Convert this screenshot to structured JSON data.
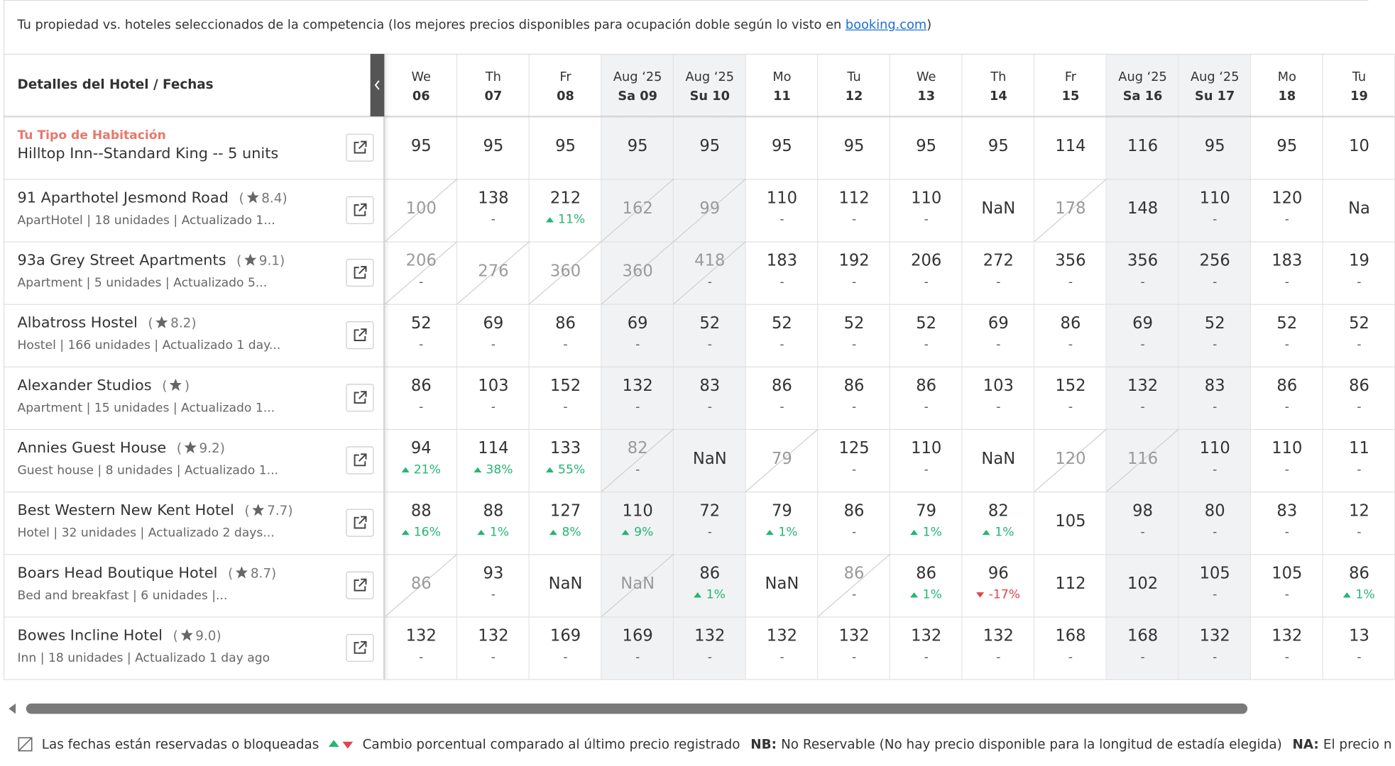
{
  "header": {
    "intro": "Tu propiedad vs. hoteles seleccionados de la competencia (los mejores precios disponibles para ocupación doble según lo visto en ",
    "link": "booking.com",
    "suffix": ")"
  },
  "table": {
    "corner": "Detalles del Hotel / Fechas",
    "columns": [
      {
        "top": "We",
        "bottom": "06"
      },
      {
        "top": "Th",
        "bottom": "07"
      },
      {
        "top": "Fr",
        "bottom": "08"
      },
      {
        "top": "Aug ‘25",
        "bottom": "Sa 09",
        "weekend": true
      },
      {
        "top": "Aug ‘25",
        "bottom": "Su 10",
        "weekend": true
      },
      {
        "top": "Mo",
        "bottom": "11"
      },
      {
        "top": "Tu",
        "bottom": "12"
      },
      {
        "top": "We",
        "bottom": "13"
      },
      {
        "top": "Th",
        "bottom": "14"
      },
      {
        "top": "Fr",
        "bottom": "15"
      },
      {
        "top": "Aug ‘25",
        "bottom": "Sa 16",
        "weekend": true
      },
      {
        "top": "Aug ‘25",
        "bottom": "Su 17",
        "weekend": true
      },
      {
        "top": "Mo",
        "bottom": "18"
      },
      {
        "top": "Tu",
        "bottom": "19"
      }
    ],
    "property": {
      "label": "Tu Tipo de Habitación",
      "name": "Hilltop Inn--Standard King -- 5 units",
      "prices": [
        "95",
        "95",
        "95",
        "95",
        "95",
        "95",
        "95",
        "95",
        "95",
        "114",
        "116",
        "95",
        "95",
        "10"
      ]
    },
    "rows": [
      {
        "name": "91 Aparthotel Jesmond Road",
        "rating": "8.4",
        "meta": "ApartHotel | 18 unidades | Actualizado 1...",
        "cells": [
          {
            "price": "100",
            "blocked": true
          },
          {
            "price": "138",
            "change": "-"
          },
          {
            "price": "212",
            "change": "11%",
            "trend": "up"
          },
          {
            "price": "162",
            "blocked": true
          },
          {
            "price": "99",
            "blocked": true
          },
          {
            "price": "110",
            "change": "-"
          },
          {
            "price": "112",
            "change": "-"
          },
          {
            "price": "110",
            "change": "-"
          },
          {
            "price": "NaN"
          },
          {
            "price": "178",
            "blocked": true
          },
          {
            "price": "148"
          },
          {
            "price": "110",
            "change": "-"
          },
          {
            "price": "120",
            "change": "-"
          },
          {
            "price": "Na"
          }
        ]
      },
      {
        "name": "93a Grey Street Apartments",
        "rating": "9.1",
        "meta": "Apartment | 5 unidades | Actualizado 5...",
        "cells": [
          {
            "price": "206",
            "change": "-",
            "blocked": true
          },
          {
            "price": "276",
            "blocked": true
          },
          {
            "price": "360",
            "blocked": true
          },
          {
            "price": "360",
            "blocked": true
          },
          {
            "price": "418",
            "change": "-",
            "blocked": true
          },
          {
            "price": "183",
            "change": "-"
          },
          {
            "price": "192",
            "change": "-"
          },
          {
            "price": "206",
            "change": "-"
          },
          {
            "price": "272",
            "change": "-"
          },
          {
            "price": "356",
            "change": "-"
          },
          {
            "price": "356",
            "change": "-"
          },
          {
            "price": "256",
            "change": "-"
          },
          {
            "price": "183",
            "change": "-"
          },
          {
            "price": "19",
            "change": "-"
          }
        ]
      },
      {
        "name": "Albatross Hostel",
        "rating": "8.2",
        "meta": "Hostel | 166 unidades | Actualizado 1 day...",
        "cells": [
          {
            "price": "52",
            "change": "-"
          },
          {
            "price": "69",
            "change": "-"
          },
          {
            "price": "86",
            "change": "-"
          },
          {
            "price": "69",
            "change": "-"
          },
          {
            "price": "52",
            "change": "-"
          },
          {
            "price": "52",
            "change": "-"
          },
          {
            "price": "52",
            "change": "-"
          },
          {
            "price": "52",
            "change": "-"
          },
          {
            "price": "69",
            "change": "-"
          },
          {
            "price": "86",
            "change": "-"
          },
          {
            "price": "69",
            "change": "-"
          },
          {
            "price": "52",
            "change": "-"
          },
          {
            "price": "52",
            "change": "-"
          },
          {
            "price": "52",
            "change": "-"
          }
        ]
      },
      {
        "name": "Alexander Studios",
        "meta": "Apartment | 15 unidades | Actualizado 1...",
        "cells": [
          {
            "price": "86",
            "change": "-"
          },
          {
            "price": "103",
            "change": "-"
          },
          {
            "price": "152",
            "change": "-"
          },
          {
            "price": "132",
            "change": "-"
          },
          {
            "price": "83",
            "change": "-"
          },
          {
            "price": "86",
            "change": "-"
          },
          {
            "price": "86",
            "change": "-"
          },
          {
            "price": "86",
            "change": "-"
          },
          {
            "price": "103",
            "change": "-"
          },
          {
            "price": "152",
            "change": "-"
          },
          {
            "price": "132",
            "change": "-"
          },
          {
            "price": "83",
            "change": "-"
          },
          {
            "price": "86",
            "change": "-"
          },
          {
            "price": "86",
            "change": "-"
          }
        ]
      },
      {
        "name": "Annies Guest House",
        "rating": "9.2",
        "meta": "Guest house | 8 unidades | Actualizado 1...",
        "cells": [
          {
            "price": "94",
            "change": "21%",
            "trend": "up"
          },
          {
            "price": "114",
            "change": "38%",
            "trend": "up"
          },
          {
            "price": "133",
            "change": "55%",
            "trend": "up"
          },
          {
            "price": "82",
            "change": "-",
            "blocked": true
          },
          {
            "price": "NaN"
          },
          {
            "price": "79",
            "blocked": true
          },
          {
            "price": "125",
            "change": "-"
          },
          {
            "price": "110",
            "change": "-"
          },
          {
            "price": "NaN"
          },
          {
            "price": "120",
            "blocked": true
          },
          {
            "price": "116",
            "blocked": true
          },
          {
            "price": "110",
            "change": "-"
          },
          {
            "price": "110",
            "change": "-"
          },
          {
            "price": "11",
            "change": "-"
          }
        ]
      },
      {
        "name": "Best Western New Kent Hotel",
        "rating": "7.7",
        "meta": "Hotel | 32 unidades | Actualizado 2 days...",
        "cells": [
          {
            "price": "88",
            "change": "16%",
            "trend": "up"
          },
          {
            "price": "88",
            "change": "1%",
            "trend": "up"
          },
          {
            "price": "127",
            "change": "8%",
            "trend": "up"
          },
          {
            "price": "110",
            "change": "9%",
            "trend": "up"
          },
          {
            "price": "72",
            "change": "-"
          },
          {
            "price": "79",
            "change": "1%",
            "trend": "up"
          },
          {
            "price": "86",
            "change": "-"
          },
          {
            "price": "79",
            "change": "1%",
            "trend": "up"
          },
          {
            "price": "82",
            "change": "1%",
            "trend": "up"
          },
          {
            "price": "105"
          },
          {
            "price": "98",
            "change": "-"
          },
          {
            "price": "80",
            "change": "-"
          },
          {
            "price": "83",
            "change": "-"
          },
          {
            "price": "12",
            "change": "-"
          }
        ]
      },
      {
        "name": "Boars Head Boutique Hotel",
        "rating": "8.7",
        "meta": "Bed and breakfast | 6 unidades |...",
        "cells": [
          {
            "price": "86",
            "blocked": true
          },
          {
            "price": "93",
            "change": "-"
          },
          {
            "price": "NaN"
          },
          {
            "price": "NaN",
            "blocked": true
          },
          {
            "price": "86",
            "change": "1%",
            "trend": "up"
          },
          {
            "price": "NaN"
          },
          {
            "price": "86",
            "change": "-",
            "blocked": true
          },
          {
            "price": "86",
            "change": "1%",
            "trend": "up"
          },
          {
            "price": "96",
            "change": "-17%",
            "trend": "down"
          },
          {
            "price": "112"
          },
          {
            "price": "102"
          },
          {
            "price": "105",
            "change": "-"
          },
          {
            "price": "105",
            "change": "-"
          },
          {
            "price": "86",
            "change": "1%",
            "trend": "up"
          }
        ]
      },
      {
        "name": "Bowes Incline Hotel",
        "rating": "9.0",
        "meta": "Inn | 18 unidades | Actualizado 1 day ago",
        "cells": [
          {
            "price": "132",
            "change": "-"
          },
          {
            "price": "132",
            "change": "-"
          },
          {
            "price": "169",
            "change": "-"
          },
          {
            "price": "169",
            "change": "-"
          },
          {
            "price": "132",
            "change": "-"
          },
          {
            "price": "132",
            "change": "-"
          },
          {
            "price": "132",
            "change": "-"
          },
          {
            "price": "132",
            "change": "-"
          },
          {
            "price": "132",
            "change": "-"
          },
          {
            "price": "168",
            "change": "-"
          },
          {
            "price": "168",
            "change": "-"
          },
          {
            "price": "132",
            "change": "-"
          },
          {
            "price": "132",
            "change": "-"
          },
          {
            "price": "13",
            "change": "-"
          }
        ]
      }
    ]
  },
  "footer": {
    "blocked": "Las fechas están reservadas o bloqueadas",
    "change": "Cambio porcentual comparado al último precio registrado",
    "nb_key": "NB:",
    "nb_text": "No Reservable (No hay precio disponible para la longitud de estadía elegida)",
    "na_key": "NA:",
    "na_text": "El precio n"
  }
}
